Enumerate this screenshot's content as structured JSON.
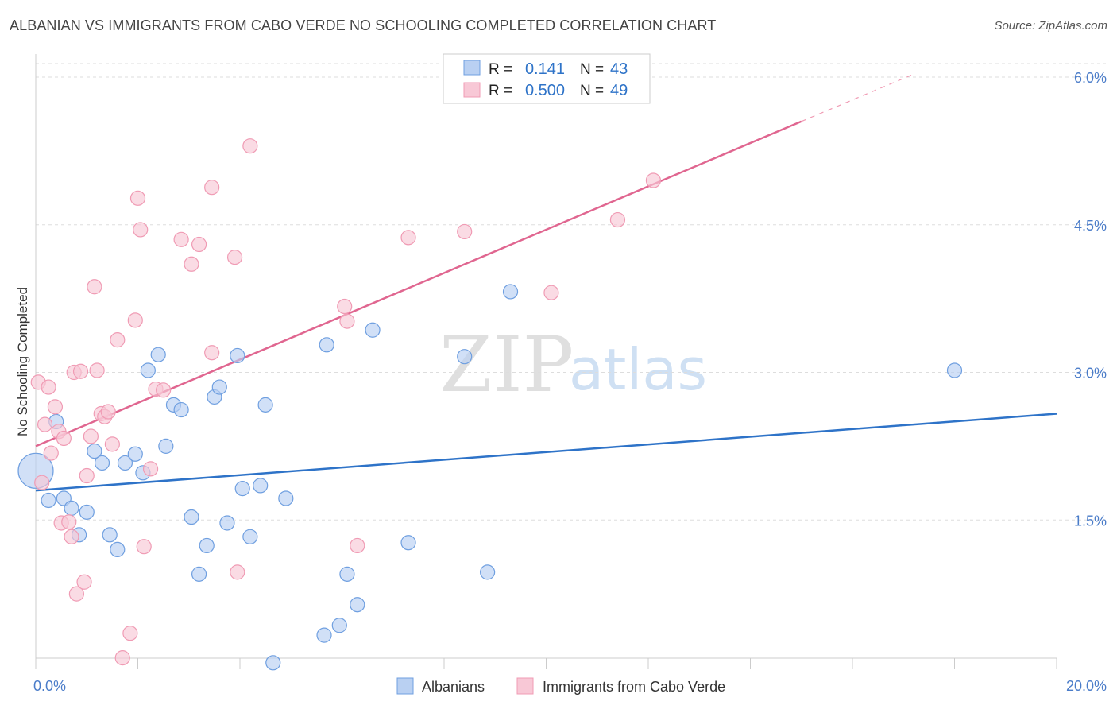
{
  "title": "ALBANIAN VS IMMIGRANTS FROM CABO VERDE NO SCHOOLING COMPLETED CORRELATION CHART",
  "source": "Source: ZipAtlas.com",
  "watermark": {
    "zip": "ZIP",
    "atlas": "atlas"
  },
  "colors": {
    "albanians": "#6f9fe0",
    "albanians_fill": "#b9d0f2",
    "albanians_line": "#2e73c8",
    "caboverde": "#f09bb4",
    "caboverde_fill": "#f8c8d6",
    "caboverde_line": "#e06690",
    "tick_label": "#4a7cc9",
    "grid": "#dddddd"
  },
  "legend": {
    "rows": [
      {
        "r_label": "R =",
        "r_value": "0.141",
        "n_label": "N =",
        "n_value": "43"
      },
      {
        "r_label": "R =",
        "r_value": "0.500",
        "n_label": "N =",
        "n_value": "49"
      }
    ]
  },
  "bottom_legend": [
    "Albanians",
    "Immigrants from Cabo Verde"
  ],
  "chart_data": {
    "type": "scatter",
    "ylabel": "No Schooling Completed",
    "x_tick_labels": [
      "0.0%",
      "20.0%"
    ],
    "y_tick_labels": [
      "1.5%",
      "3.0%",
      "4.5%",
      "6.0%"
    ],
    "y_ticks": [
      1.5,
      3.0,
      4.5,
      6.0
    ],
    "xlim": [
      0,
      20
    ],
    "ylim": [
      0,
      6.25
    ],
    "grid": true,
    "series": [
      {
        "name": "Albanians",
        "points": [
          {
            "x": 0.0,
            "y": 2.0,
            "big": true
          },
          {
            "x": 0.25,
            "y": 1.7
          },
          {
            "x": 0.4,
            "y": 2.5
          },
          {
            "x": 0.55,
            "y": 1.72
          },
          {
            "x": 0.7,
            "y": 1.62
          },
          {
            "x": 0.85,
            "y": 1.35
          },
          {
            "x": 1.0,
            "y": 1.58
          },
          {
            "x": 1.15,
            "y": 2.2
          },
          {
            "x": 1.3,
            "y": 2.08
          },
          {
            "x": 1.45,
            "y": 1.35
          },
          {
            "x": 1.6,
            "y": 1.2
          },
          {
            "x": 1.75,
            "y": 2.08
          },
          {
            "x": 1.95,
            "y": 2.17
          },
          {
            "x": 2.1,
            "y": 1.98
          },
          {
            "x": 2.2,
            "y": 3.02
          },
          {
            "x": 2.4,
            "y": 3.18
          },
          {
            "x": 2.55,
            "y": 2.25
          },
          {
            "x": 2.7,
            "y": 2.67
          },
          {
            "x": 2.85,
            "y": 2.62
          },
          {
            "x": 3.05,
            "y": 1.53
          },
          {
            "x": 3.2,
            "y": 0.95
          },
          {
            "x": 3.35,
            "y": 1.24
          },
          {
            "x": 3.5,
            "y": 2.75
          },
          {
            "x": 3.6,
            "y": 2.85
          },
          {
            "x": 3.75,
            "y": 1.47
          },
          {
            "x": 3.95,
            "y": 3.17
          },
          {
            "x": 4.05,
            "y": 1.82
          },
          {
            "x": 4.2,
            "y": 1.33
          },
          {
            "x": 4.4,
            "y": 1.85
          },
          {
            "x": 4.5,
            "y": 2.67
          },
          {
            "x": 4.65,
            "y": 0.05
          },
          {
            "x": 4.9,
            "y": 1.72
          },
          {
            "x": 5.65,
            "y": 0.33
          },
          {
            "x": 5.7,
            "y": 3.28
          },
          {
            "x": 5.95,
            "y": 0.43
          },
          {
            "x": 6.1,
            "y": 0.95
          },
          {
            "x": 6.3,
            "y": 0.64
          },
          {
            "x": 6.6,
            "y": 3.43
          },
          {
            "x": 7.3,
            "y": 1.27
          },
          {
            "x": 8.4,
            "y": 3.16
          },
          {
            "x": 8.85,
            "y": 0.97
          },
          {
            "x": 9.3,
            "y": 3.82
          },
          {
            "x": 18.0,
            "y": 3.02
          }
        ]
      },
      {
        "name": "Immigrants from Cabo Verde",
        "points": [
          {
            "x": 0.05,
            "y": 2.9
          },
          {
            "x": 0.12,
            "y": 1.88
          },
          {
            "x": 0.18,
            "y": 2.47
          },
          {
            "x": 0.25,
            "y": 2.85
          },
          {
            "x": 0.3,
            "y": 2.18
          },
          {
            "x": 0.38,
            "y": 2.65
          },
          {
            "x": 0.45,
            "y": 2.4
          },
          {
            "x": 0.5,
            "y": 1.47
          },
          {
            "x": 0.55,
            "y": 2.33
          },
          {
            "x": 0.65,
            "y": 1.48
          },
          {
            "x": 0.7,
            "y": 1.33
          },
          {
            "x": 0.75,
            "y": 3.0
          },
          {
            "x": 0.8,
            "y": 0.75
          },
          {
            "x": 0.88,
            "y": 3.01
          },
          {
            "x": 0.95,
            "y": 0.87
          },
          {
            "x": 1.0,
            "y": 1.95
          },
          {
            "x": 1.08,
            "y": 2.35
          },
          {
            "x": 1.15,
            "y": 3.87
          },
          {
            "x": 1.2,
            "y": 3.02
          },
          {
            "x": 1.28,
            "y": 2.58
          },
          {
            "x": 1.35,
            "y": 2.55
          },
          {
            "x": 1.42,
            "y": 2.6
          },
          {
            "x": 1.5,
            "y": 2.27
          },
          {
            "x": 1.6,
            "y": 3.33
          },
          {
            "x": 1.7,
            "y": 0.1
          },
          {
            "x": 1.85,
            "y": 0.35
          },
          {
            "x": 1.95,
            "y": 3.53
          },
          {
            "x": 2.0,
            "y": 4.77
          },
          {
            "x": 2.05,
            "y": 4.45
          },
          {
            "x": 2.12,
            "y": 1.23
          },
          {
            "x": 2.25,
            "y": 2.02
          },
          {
            "x": 2.35,
            "y": 2.83
          },
          {
            "x": 2.5,
            "y": 2.82
          },
          {
            "x": 2.85,
            "y": 4.35
          },
          {
            "x": 3.05,
            "y": 4.1
          },
          {
            "x": 3.2,
            "y": 4.3
          },
          {
            "x": 3.45,
            "y": 3.2
          },
          {
            "x": 3.45,
            "y": 4.88
          },
          {
            "x": 3.9,
            "y": 4.17
          },
          {
            "x": 3.95,
            "y": 0.97
          },
          {
            "x": 4.2,
            "y": 5.3
          },
          {
            "x": 6.05,
            "y": 3.67
          },
          {
            "x": 6.1,
            "y": 3.52
          },
          {
            "x": 6.3,
            "y": 1.24
          },
          {
            "x": 7.3,
            "y": 4.37
          },
          {
            "x": 8.4,
            "y": 4.43
          },
          {
            "x": 10.1,
            "y": 3.81
          },
          {
            "x": 11.4,
            "y": 4.55
          },
          {
            "x": 12.1,
            "y": 4.95
          }
        ]
      }
    ],
    "trendlines": [
      {
        "name": "Albanians",
        "x": [
          0,
          20
        ],
        "y": [
          1.8,
          2.58
        ]
      },
      {
        "name": "Immigrants from Cabo Verde",
        "x": [
          0,
          15
        ],
        "y": [
          2.25,
          5.55
        ],
        "dashed_x": [
          15,
          17.2
        ],
        "dashed_y": [
          5.55,
          6.03
        ]
      }
    ]
  }
}
